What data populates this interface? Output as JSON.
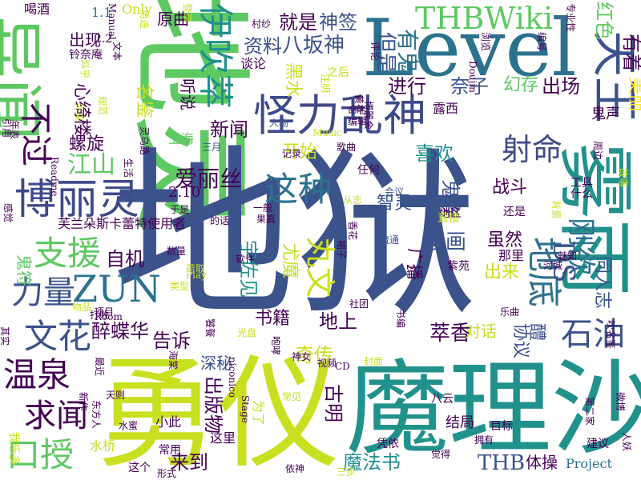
{
  "cloud": {
    "background": "#ffffff",
    "palette": [
      "#3b528b",
      "#21918c",
      "#5ec962",
      "#fde725",
      "#440154",
      "#2c728e",
      "#7ad151"
    ],
    "words": [
      {
        "text": "地灵",
        "color": "#5ec962"
      },
      {
        "text": "地狱",
        "color": "#3b528b"
      },
      {
        "text": "勇仪",
        "color": "#c8e020"
      },
      {
        "text": "魔理沙",
        "color": "#21918c"
      },
      {
        "text": "Level",
        "color": "#2c728e"
      },
      {
        "text": "雾雨",
        "color": "#21918c"
      },
      {
        "text": "异闻",
        "color": "#5ec962"
      },
      {
        "text": "怪力乱神",
        "color": "#3e4a89"
      },
      {
        "text": "博丽灵",
        "color": "#3e4a89"
      },
      {
        "text": "THBWiki",
        "color": "#5ec962"
      },
      {
        "text": "伊吹萃",
        "color": "#21918c"
      },
      {
        "text": "天王",
        "color": "#3b528b"
      },
      {
        "text": "就是",
        "color": "#440154"
      },
      {
        "text": "神签",
        "color": "#3b528b"
      },
      {
        "text": "资料",
        "color": "#3b528b"
      },
      {
        "text": "八坂神",
        "color": "#3b528b"
      },
      {
        "text": "有鬼",
        "color": "#2c728e"
      },
      {
        "text": "但是",
        "color": "#3b528b"
      },
      {
        "text": "有着",
        "color": "#440154"
      },
      {
        "text": "美丽",
        "color": "#fde725"
      },
      {
        "text": "红色",
        "color": "#5ec962"
      },
      {
        "text": "进行",
        "color": "#440154"
      },
      {
        "text": "奈子",
        "color": "#3b528b"
      },
      {
        "text": "出场",
        "color": "#440154"
      },
      {
        "text": "幻存",
        "color": "#5ec962"
      },
      {
        "text": "射命",
        "color": "#3e4a89"
      },
      {
        "text": "不过",
        "color": "#440154"
      },
      {
        "text": "江山",
        "color": "#5ec962"
      },
      {
        "text": "这种",
        "color": "#2c728e"
      },
      {
        "text": "爱丽丝",
        "color": "#440154"
      },
      {
        "text": "喜欢",
        "color": "#21918c"
      },
      {
        "text": "开始",
        "color": "#c8e020"
      },
      {
        "text": "新闻",
        "color": "#440154"
      },
      {
        "text": "支援",
        "color": "#5ec962"
      },
      {
        "text": "力量",
        "color": "#3b528b"
      },
      {
        "text": "ZUN",
        "color": "#2c728e"
      },
      {
        "text": "文花",
        "color": "#3b528b"
      },
      {
        "text": "温泉",
        "color": "#440154"
      },
      {
        "text": "求闻",
        "color": "#440154"
      },
      {
        "text": "口授",
        "color": "#5ec962"
      },
      {
        "text": "丸文",
        "color": "#c8e020"
      },
      {
        "text": "刚欲",
        "color": "#2c728e"
      },
      {
        "text": "地底",
        "color": "#3b528b"
      },
      {
        "text": "石油",
        "color": "#440154"
      },
      {
        "text": "智灵",
        "color": "#3b528b"
      },
      {
        "text": "鬼族",
        "color": "#3b528b"
      },
      {
        "text": "战斗",
        "color": "#440154"
      },
      {
        "text": "漫画",
        "color": "#3b528b"
      },
      {
        "text": "虽然",
        "color": "#440154"
      },
      {
        "text": "出来",
        "color": "#c8e020"
      },
      {
        "text": "萃香",
        "color": "#440154"
      },
      {
        "text": "奇传",
        "color": "#c8e020"
      },
      {
        "text": "地上",
        "color": "#440154"
      },
      {
        "text": "书籍",
        "color": "#440154"
      },
      {
        "text": "对话",
        "color": "#c8e020"
      },
      {
        "text": "告诉",
        "color": "#440154"
      },
      {
        "text": "醉蝶华",
        "color": "#440154"
      },
      {
        "text": "自机",
        "color": "#440154"
      },
      {
        "text": "出版物",
        "color": "#440154"
      },
      {
        "text": "来到",
        "color": "#440154"
      },
      {
        "text": "魔法书",
        "color": "#21918c"
      },
      {
        "text": "THB",
        "color": "#3b528b"
      },
      {
        "text": "体操",
        "color": "#440154"
      },
      {
        "text": "Project",
        "color": "#2c728e"
      },
      {
        "text": "出现",
        "color": "#440154"
      },
      {
        "text": "心绮楼",
        "color": "#440154"
      },
      {
        "text": "螺旋",
        "color": "#440154"
      },
      {
        "text": "原曲",
        "color": "#440154"
      },
      {
        "text": "听说",
        "color": "#440154"
      },
      {
        "text": "谈论",
        "color": "#440154"
      },
      {
        "text": "黑水",
        "color": "#c8e020"
      },
      {
        "text": "露西",
        "color": "#440154"
      },
      {
        "text": "之后",
        "color": "#c8e020"
      },
      {
        "text": "鬼声",
        "color": "#440154"
      },
      {
        "text": "名鉴",
        "color": "#c8e020"
      },
      {
        "text": "上海",
        "color": "#5ec962"
      },
      {
        "text": "古明",
        "color": "#440154"
      },
      {
        "text": "宇佐见",
        "color": "#21918c"
      },
      {
        "text": "尤魔",
        "color": "#c8e020"
      },
      {
        "text": "醴",
        "color": "#3b528b"
      },
      {
        "text": "DS",
        "color": "#3b528b"
      },
      {
        "text": "喝酒",
        "color": "#440154"
      },
      {
        "text": "1.1",
        "color": "#2c728e"
      },
      {
        "text": "Only",
        "color": "#c8e020"
      },
      {
        "text": "2.2",
        "color": "#440154"
      },
      {
        "text": "2.10",
        "color": "#440154"
      },
      {
        "text": "鬼符",
        "color": "#5ec962"
      },
      {
        "text": "斯卡蕾特使用者",
        "color": "#440154"
      },
      {
        "text": "芙兰朵",
        "color": "#440154"
      },
      {
        "text": "铃奈庵",
        "color": "#440154"
      },
      {
        "text": "村纱",
        "color": "#440154"
      },
      {
        "text": "人物",
        "color": "#3b528b"
      },
      {
        "text": "命名",
        "color": "#440154"
      },
      {
        "text": "编辑",
        "color": "#440154"
      },
      {
        "text": "三月",
        "color": "#3b528b"
      },
      {
        "text": "记录",
        "color": "#440154"
      },
      {
        "text": "任何",
        "color": "#440154"
      },
      {
        "text": "会议",
        "color": "#3b528b"
      },
      {
        "text": "一般",
        "color": "#440154"
      },
      {
        "text": "的话",
        "color": "#440154"
      },
      {
        "text": "于是",
        "color": "#440154"
      },
      {
        "text": "果真",
        "color": "#440154"
      },
      {
        "text": "流通",
        "color": "#3b528b"
      },
      {
        "text": "紫苑",
        "color": "#440154"
      },
      {
        "text": "那里",
        "color": "#440154"
      },
      {
        "text": "魅知",
        "color": "#440154"
      },
      {
        "text": "软件",
        "color": "#440154"
      },
      {
        "text": "数量",
        "color": "#440154"
      },
      {
        "text": "荷取",
        "color": "#c8e020"
      },
      {
        "text": "类型",
        "color": "#c8e020"
      },
      {
        "text": "Play",
        "color": "#c8e020"
      },
      {
        "text": "打败",
        "color": "#440154"
      },
      {
        "text": "物品",
        "color": "#c8e020"
      },
      {
        "text": "Room",
        "color": "#440154"
      },
      {
        "text": "项目",
        "color": "#440154"
      },
      {
        "text": "光盘",
        "color": "#c8e020"
      },
      {
        "text": "社团",
        "color": "#440154"
      },
      {
        "text": "乐曲",
        "color": "#440154"
      },
      {
        "text": "深秘",
        "color": "#440154"
      },
      {
        "text": "天则",
        "color": "#440154"
      },
      {
        "text": "神女",
        "color": "#440154"
      },
      {
        "text": "CD",
        "color": "#3b528b"
      },
      {
        "text": "封面",
        "color": "#440154"
      },
      {
        "text": "视频",
        "color": "#440154"
      },
      {
        "text": "常见",
        "color": "#440154"
      },
      {
        "text": "八云",
        "color": "#c8e020"
      },
      {
        "text": "目标",
        "color": "#440154"
      },
      {
        "text": "建议",
        "color": "#c8e020"
      },
      {
        "text": "结局",
        "color": "#440154"
      },
      {
        "text": "凭依",
        "color": "#440154"
      },
      {
        "text": "拥有",
        "color": "#440154"
      },
      {
        "text": "觉得",
        "color": "#440154"
      },
      {
        "text": "依神",
        "color": "#440154"
      },
      {
        "text": "三步",
        "color": "#440154"
      },
      {
        "text": "小此",
        "color": "#440154"
      },
      {
        "text": "这里",
        "color": "#440154"
      },
      {
        "text": "常用",
        "color": "#c8e020"
      },
      {
        "text": "水蜜",
        "color": "#440154"
      },
      {
        "text": "水桥",
        "color": "#440154"
      },
      {
        "text": "这个",
        "color": "#440154"
      },
      {
        "text": "形式",
        "color": "#440154"
      },
      {
        "text": "为了",
        "color": "#c8e020"
      },
      {
        "text": "Stage",
        "color": "#440154"
      },
      {
        "text": "niconico",
        "color": "#440154"
      },
      {
        "text": "新作",
        "color": "#c8e020"
      },
      {
        "text": "我乐多",
        "color": "#440154"
      },
      {
        "text": "最近",
        "color": "#440154"
      },
      {
        "text": "东方人",
        "color": "#440154"
      },
      {
        "text": "其实",
        "color": "#c8e020"
      },
      {
        "text": "感觉",
        "color": "#440154"
      },
      {
        "text": "生活",
        "color": "#440154"
      },
      {
        "text": "灵乌路",
        "color": "#440154"
      },
      {
        "text": "规范",
        "color": "#440154"
      },
      {
        "text": "似乎",
        "color": "#440154"
      },
      {
        "text": "外来",
        "color": "#440154"
      },
      {
        "text": "引用",
        "color": "#c8e020"
      },
      {
        "text": "年表",
        "color": "#c8e020"
      },
      {
        "text": "Readme",
        "color": "#c8e020"
      },
      {
        "text": "Manual",
        "color": "#440154"
      },
      {
        "text": "文本",
        "color": "#440154"
      },
      {
        "text": "用途",
        "color": "#440154"
      },
      {
        "text": "登录",
        "color": "#440154"
      },
      {
        "text": "注明",
        "color": "#440154"
      },
      {
        "text": "博麗会",
        "color": "#c8e020"
      },
      {
        "text": "Music",
        "color": "#c8e020"
      },
      {
        "text": "歌曲",
        "color": "#c8e020"
      },
      {
        "text": "地区",
        "color": "#440154"
      },
      {
        "text": "工具",
        "color": "#c8e020"
      },
      {
        "text": "什么",
        "color": "#440154"
      },
      {
        "text": "故事",
        "color": "#440154"
      },
      {
        "text": "背景",
        "color": "#440154"
      },
      {
        "text": "直接",
        "color": "#440154"
      },
      {
        "text": "还是",
        "color": "#c8e020"
      },
      {
        "text": "香花",
        "color": "#c8e020"
      },
      {
        "text": "裙子",
        "color": "#c8e020"
      },
      {
        "text": "河城",
        "color": "#440154"
      },
      {
        "text": "从志",
        "color": "#440154"
      },
      {
        "text": "咆哮",
        "color": "#440154"
      },
      {
        "text": "书编",
        "color": "#440154"
      },
      {
        "text": "2.3",
        "color": "#c8e020"
      },
      {
        "text": "吹名鉴",
        "color": "#440154"
      },
      {
        "text": "第二家",
        "color": "#440154"
      },
      {
        "text": "人妖",
        "color": "#440154"
      },
      {
        "text": "专业性",
        "color": "#440154"
      },
      {
        "text": "编号",
        "color": "#440154"
      },
      {
        "text": "浏览",
        "color": "#440154"
      },
      {
        "text": "同人志",
        "color": "#440154"
      },
      {
        "text": "协议",
        "color": "#440154"
      },
      {
        "text": "广播",
        "color": "#440154"
      },
      {
        "text": "Doujin",
        "color": "#440154"
      },
      {
        "text": "评论",
        "color": "#440154"
      },
      {
        "text": "黄存",
        "color": "#440154"
      },
      {
        "text": "微博",
        "color": "#440154"
      },
      {
        "text": "周边",
        "color": "#440154"
      },
      {
        "text": "海棠",
        "color": "#3b528b"
      },
      {
        "text": "饕餮",
        "color": "#3b528b"
      },
      {
        "text": "调查",
        "color": "#440154"
      },
      {
        "text": "画集",
        "color": "#440154"
      },
      {
        "text": "游戏",
        "color": "#440154"
      }
    ]
  }
}
